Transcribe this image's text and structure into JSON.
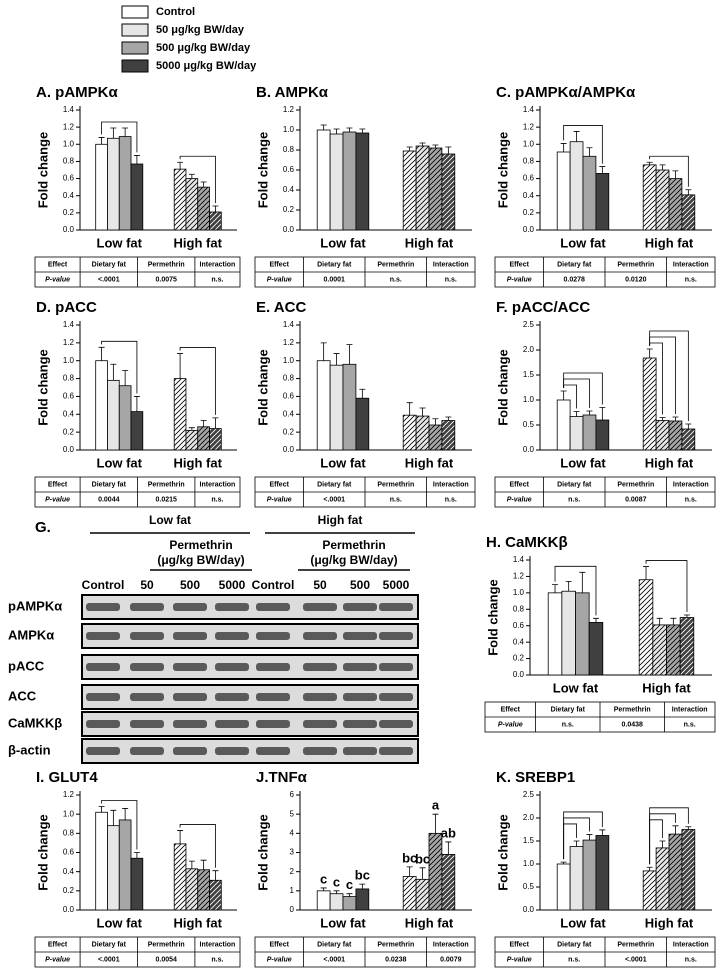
{
  "legend": [
    {
      "name": "Control",
      "color": "#ffffff"
    },
    {
      "name": "50 μg/kg BW/day",
      "color": "#e6e6e6"
    },
    {
      "name": "500 μg/kg BW/day",
      "color": "#a6a6a6"
    },
    {
      "name": "5000 μg/kg BW/day",
      "color": "#404040"
    }
  ],
  "chart_data": [
    {
      "type": "bar",
      "title": "A. pAMPKα",
      "ylabel": "Fold change",
      "categories": [
        "Low fat",
        "High fat"
      ],
      "hatch": [
        false,
        true
      ],
      "ylim": [
        0,
        1.4
      ],
      "yticks": [
        {
          "value": 0,
          "label": "0.0"
        },
        0.2,
        0.4,
        0.6,
        0.8,
        {
          "value": 1,
          "label": "1.0"
        },
        1.2,
        1.4
      ],
      "series": [
        {
          "values": [
            1.0,
            0.71
          ],
          "errors": [
            0.08,
            0.08
          ]
        },
        {
          "values": [
            1.07,
            0.6
          ],
          "errors": [
            0.12,
            0.05
          ]
        },
        {
          "values": [
            1.09,
            0.5
          ],
          "errors": [
            0.1,
            0.06
          ]
        },
        {
          "values": [
            0.77,
            0.21
          ],
          "errors": [
            0.1,
            0.07
          ]
        }
      ],
      "brackets": [
        [
          0,
          0,
          3
        ],
        [
          1,
          0,
          3
        ]
      ],
      "table": {
        "header": [
          "Effect",
          "Dietary fat",
          "Permethrin",
          "Interaction"
        ],
        "row": [
          "P-value",
          "<.0001",
          "0.0075",
          "n.s."
        ]
      }
    },
    {
      "type": "bar",
      "title": "B. AMPKα",
      "ylabel": "Fold change",
      "categories": [
        "Low fat",
        "High fat"
      ],
      "hatch": [
        false,
        true
      ],
      "ylim": [
        0,
        1.2
      ],
      "yticks": [
        {
          "value": 0,
          "label": "0.0"
        },
        0.2,
        0.4,
        0.6,
        0.8,
        {
          "value": 1,
          "label": "1.0"
        },
        1.2
      ],
      "series": [
        {
          "values": [
            1.0,
            0.79
          ],
          "errors": [
            0.05,
            0.04
          ]
        },
        {
          "values": [
            0.96,
            0.84
          ],
          "errors": [
            0.05,
            0.03
          ]
        },
        {
          "values": [
            0.98,
            0.82
          ],
          "errors": [
            0.04,
            0.03
          ]
        },
        {
          "values": [
            0.97,
            0.76
          ],
          "errors": [
            0.04,
            0.07
          ]
        }
      ],
      "brackets": [],
      "table": {
        "header": [
          "Effect",
          "Dietary fat",
          "Permethrin",
          "Interaction"
        ],
        "row": [
          "P-value",
          "0.0001",
          "n.s.",
          "n.s."
        ]
      }
    },
    {
      "type": "bar",
      "title": "C. pAMPKα/AMPKα",
      "ylabel": "Fold change",
      "categories": [
        "Low fat",
        "High fat"
      ],
      "hatch": [
        false,
        true
      ],
      "ylim": [
        0,
        1.4
      ],
      "yticks": [
        {
          "value": 0,
          "label": "0.0"
        },
        0.2,
        0.4,
        0.6,
        0.8,
        {
          "value": 1,
          "label": "1.0"
        },
        1.2,
        1.4
      ],
      "series": [
        {
          "values": [
            0.91,
            0.76
          ],
          "errors": [
            0.1,
            0.03
          ]
        },
        {
          "values": [
            1.03,
            0.7
          ],
          "errors": [
            0.12,
            0.06
          ]
        },
        {
          "values": [
            0.86,
            0.6
          ],
          "errors": [
            0.1,
            0.09
          ]
        },
        {
          "values": [
            0.66,
            0.41
          ],
          "errors": [
            0.08,
            0.06
          ]
        }
      ],
      "brackets": [
        [
          0,
          0,
          3
        ],
        [
          1,
          0,
          3
        ]
      ],
      "table": {
        "header": [
          "Effect",
          "Dietary fat",
          "Permethrin",
          "Interaction"
        ],
        "row": [
          "P-value",
          "0.0278",
          "0.0120",
          "n.s."
        ]
      }
    },
    {
      "type": "bar",
      "title": "D. pACC",
      "ylabel": "Fold change",
      "categories": [
        "Low fat",
        "High fat"
      ],
      "hatch": [
        false,
        true
      ],
      "ylim": [
        0,
        1.4
      ],
      "yticks": [
        {
          "value": 0,
          "label": "0.0"
        },
        0.2,
        0.4,
        0.6,
        0.8,
        {
          "value": 1,
          "label": "1.0"
        },
        1.2,
        1.4
      ],
      "series": [
        {
          "values": [
            1.0,
            0.8
          ],
          "errors": [
            0.15,
            0.28
          ]
        },
        {
          "values": [
            0.78,
            0.22
          ],
          "errors": [
            0.18,
            0.03
          ]
        },
        {
          "values": [
            0.72,
            0.26
          ],
          "errors": [
            0.17,
            0.07
          ]
        },
        {
          "values": [
            0.43,
            0.24
          ],
          "errors": [
            0.17,
            0.12
          ]
        }
      ],
      "brackets": [
        [
          0,
          0,
          3
        ],
        [
          1,
          0,
          3
        ]
      ],
      "table": {
        "header": [
          "Effect",
          "Dietary fat",
          "Permethrin",
          "Interaction"
        ],
        "row": [
          "P-value",
          "0.0044",
          "0.0215",
          "n.s."
        ]
      }
    },
    {
      "type": "bar",
      "title": "E. ACC",
      "ylabel": "Fold change",
      "categories": [
        "Low fat",
        "High fat"
      ],
      "hatch": [
        false,
        true
      ],
      "ylim": [
        0,
        1.4
      ],
      "yticks": [
        {
          "value": 0,
          "label": "0.0"
        },
        0.2,
        0.4,
        0.6,
        0.8,
        {
          "value": 1,
          "label": "1.0"
        },
        1.2,
        1.4
      ],
      "series": [
        {
          "values": [
            1.0,
            0.39
          ],
          "errors": [
            0.2,
            0.14
          ]
        },
        {
          "values": [
            0.95,
            0.38
          ],
          "errors": [
            0.13,
            0.09
          ]
        },
        {
          "values": [
            0.96,
            0.28
          ],
          "errors": [
            0.22,
            0.07
          ]
        },
        {
          "values": [
            0.58,
            0.33
          ],
          "errors": [
            0.1,
            0.04
          ]
        }
      ],
      "brackets": [],
      "table": {
        "header": [
          "Effect",
          "Dietary fat",
          "Permethrin",
          "Interaction"
        ],
        "row": [
          "P-value",
          "<.0001",
          "n.s.",
          "n.s."
        ]
      }
    },
    {
      "type": "bar",
      "title": "F. pACC/ACC",
      "ylabel": "Fold change",
      "categories": [
        "Low fat",
        "High fat"
      ],
      "hatch": [
        false,
        true
      ],
      "ylim": [
        0,
        2.5
      ],
      "yticks": [
        {
          "value": 0,
          "label": "0.0"
        },
        0.5,
        {
          "value": 1,
          "label": "1.0"
        },
        1.5,
        {
          "value": 2,
          "label": "2.0"
        },
        2.5
      ],
      "series": [
        {
          "values": [
            1.0,
            1.84
          ],
          "errors": [
            0.18,
            0.18
          ]
        },
        {
          "values": [
            0.67,
            0.59
          ],
          "errors": [
            0.1,
            0.06
          ]
        },
        {
          "values": [
            0.7,
            0.58
          ],
          "errors": [
            0.08,
            0.08
          ]
        },
        {
          "values": [
            0.6,
            0.42
          ],
          "errors": [
            0.25,
            0.1
          ]
        }
      ],
      "brackets": [
        [
          0,
          0,
          1
        ],
        [
          0,
          0,
          2
        ],
        [
          0,
          0,
          3
        ],
        [
          1,
          0,
          1
        ],
        [
          1,
          0,
          2
        ],
        [
          1,
          0,
          3
        ]
      ],
      "table": {
        "header": [
          "Effect",
          "Dietary fat",
          "Permethrin",
          "Interaction"
        ],
        "row": [
          "P-value",
          "n.s.",
          "0.0087",
          "n.s."
        ]
      }
    },
    {
      "type": "bar",
      "title": "H. CaMKKβ",
      "ylabel": "Fold change",
      "categories": [
        "Low fat",
        "High fat"
      ],
      "hatch": [
        false,
        true
      ],
      "ylim": [
        0,
        1.4
      ],
      "yticks": [
        {
          "value": 0,
          "label": "0.0"
        },
        0.2,
        0.4,
        0.6,
        0.8,
        {
          "value": 1,
          "label": "1.0"
        },
        1.2,
        1.4
      ],
      "series": [
        {
          "values": [
            1.0,
            1.16
          ],
          "errors": [
            0.1,
            0.16
          ]
        },
        {
          "values": [
            1.02,
            0.61
          ],
          "errors": [
            0.12,
            0.08
          ]
        },
        {
          "values": [
            1.0,
            0.61
          ],
          "errors": [
            0.25,
            0.08
          ]
        },
        {
          "values": [
            0.64,
            0.7
          ],
          "errors": [
            0.05,
            0.03
          ]
        }
      ],
      "brackets": [
        [
          0,
          0,
          3
        ],
        [
          1,
          0,
          3
        ]
      ],
      "table": {
        "header": [
          "Effect",
          "Dietary fat",
          "Permethrin",
          "Interaction"
        ],
        "row": [
          "P-value",
          "n.s.",
          "0.0438",
          "n.s."
        ]
      }
    },
    {
      "type": "bar",
      "title": "I. GLUT4",
      "ylabel": "Fold change",
      "categories": [
        "Low fat",
        "High fat"
      ],
      "hatch": [
        false,
        true
      ],
      "ylim": [
        0,
        1.2
      ],
      "yticks": [
        {
          "value": 0,
          "label": "0.0"
        },
        0.2,
        0.4,
        0.6,
        0.8,
        {
          "value": 1,
          "label": "1.0"
        },
        1.2
      ],
      "series": [
        {
          "values": [
            1.02,
            0.69
          ],
          "errors": [
            0.06,
            0.14
          ]
        },
        {
          "values": [
            0.88,
            0.43
          ],
          "errors": [
            0.16,
            0.08
          ]
        },
        {
          "values": [
            0.94,
            0.42
          ],
          "errors": [
            0.12,
            0.1
          ]
        },
        {
          "values": [
            0.54,
            0.31
          ],
          "errors": [
            0.06,
            0.1
          ]
        }
      ],
      "brackets": [
        [
          0,
          0,
          3
        ],
        [
          1,
          0,
          3
        ]
      ],
      "table": {
        "header": [
          "Effect",
          "Dietary fat",
          "Permethrin",
          "Interaction"
        ],
        "row": [
          "P-value",
          "<.0001",
          "0.0054",
          "n.s."
        ]
      }
    },
    {
      "type": "bar",
      "title": "J.TNFα",
      "ylabel": "Fold change",
      "categories": [
        "Low fat",
        "High fat"
      ],
      "hatch": [
        false,
        true
      ],
      "ylim": [
        0,
        6
      ],
      "yticks": [
        0,
        1,
        2,
        3,
        4,
        5,
        6
      ],
      "series": [
        {
          "values": [
            1.0,
            1.75
          ],
          "errors": [
            0.15,
            0.5
          ],
          "letters": [
            "c",
            "bc"
          ]
        },
        {
          "values": [
            0.85,
            1.6
          ],
          "errors": [
            0.15,
            0.6
          ],
          "letters": [
            "c",
            "bc"
          ]
        },
        {
          "values": [
            0.7,
            4.0
          ],
          "errors": [
            0.15,
            1.0
          ],
          "letters": [
            "c",
            "a"
          ]
        },
        {
          "values": [
            1.1,
            2.9
          ],
          "errors": [
            0.25,
            0.65
          ],
          "letters": [
            "bc",
            "ab"
          ]
        }
      ],
      "brackets": [],
      "table": {
        "header": [
          "Effect",
          "Dietary fat",
          "Permethrin",
          "Interaction"
        ],
        "row": [
          "P-value",
          "<.0001",
          "0.0238",
          "0.0079"
        ]
      }
    },
    {
      "type": "bar",
      "title": "K. SREBP1",
      "ylabel": "Fold change",
      "categories": [
        "Low fat",
        "High fat"
      ],
      "hatch": [
        false,
        true
      ],
      "ylim": [
        0,
        2.5
      ],
      "yticks": [
        {
          "value": 0,
          "label": "0.0"
        },
        0.5,
        {
          "value": 1,
          "label": "1.0"
        },
        1.5,
        {
          "value": 2,
          "label": "2.0"
        },
        2.5
      ],
      "series": [
        {
          "values": [
            1.0,
            0.85
          ],
          "errors": [
            0.04,
            0.08
          ]
        },
        {
          "values": [
            1.38,
            1.35
          ],
          "errors": [
            0.12,
            0.15
          ]
        },
        {
          "values": [
            1.52,
            1.65
          ],
          "errors": [
            0.12,
            0.18
          ]
        },
        {
          "values": [
            1.62,
            1.75
          ],
          "errors": [
            0.12,
            0.06
          ]
        }
      ],
      "brackets": [
        [
          0,
          0,
          1
        ],
        [
          0,
          0,
          2
        ],
        [
          0,
          0,
          3
        ],
        [
          1,
          0,
          1
        ],
        [
          1,
          0,
          2
        ],
        [
          1,
          0,
          3
        ]
      ],
      "table": {
        "header": [
          "Effect",
          "Dietary fat",
          "Permethrin",
          "Interaction"
        ],
        "row": [
          "P-value",
          "n.s.",
          "<.0001",
          "n.s."
        ]
      }
    }
  ],
  "blot": {
    "title": "G.",
    "groups": [
      {
        "label": "Low fat",
        "treatment": [
          "Permethrin",
          "(μg/kg BW/day)"
        ]
      },
      {
        "label": "High fat",
        "treatment": [
          "Permethrin",
          "(μg/kg BW/day)"
        ]
      }
    ],
    "lanes": [
      "Control",
      "50",
      "500",
      "5000",
      "Control",
      "50",
      "500",
      "5000"
    ],
    "rows": [
      "pAMPKα",
      "AMPKα",
      "pACC",
      "ACC",
      "CaMKKβ",
      "β-actin"
    ]
  }
}
